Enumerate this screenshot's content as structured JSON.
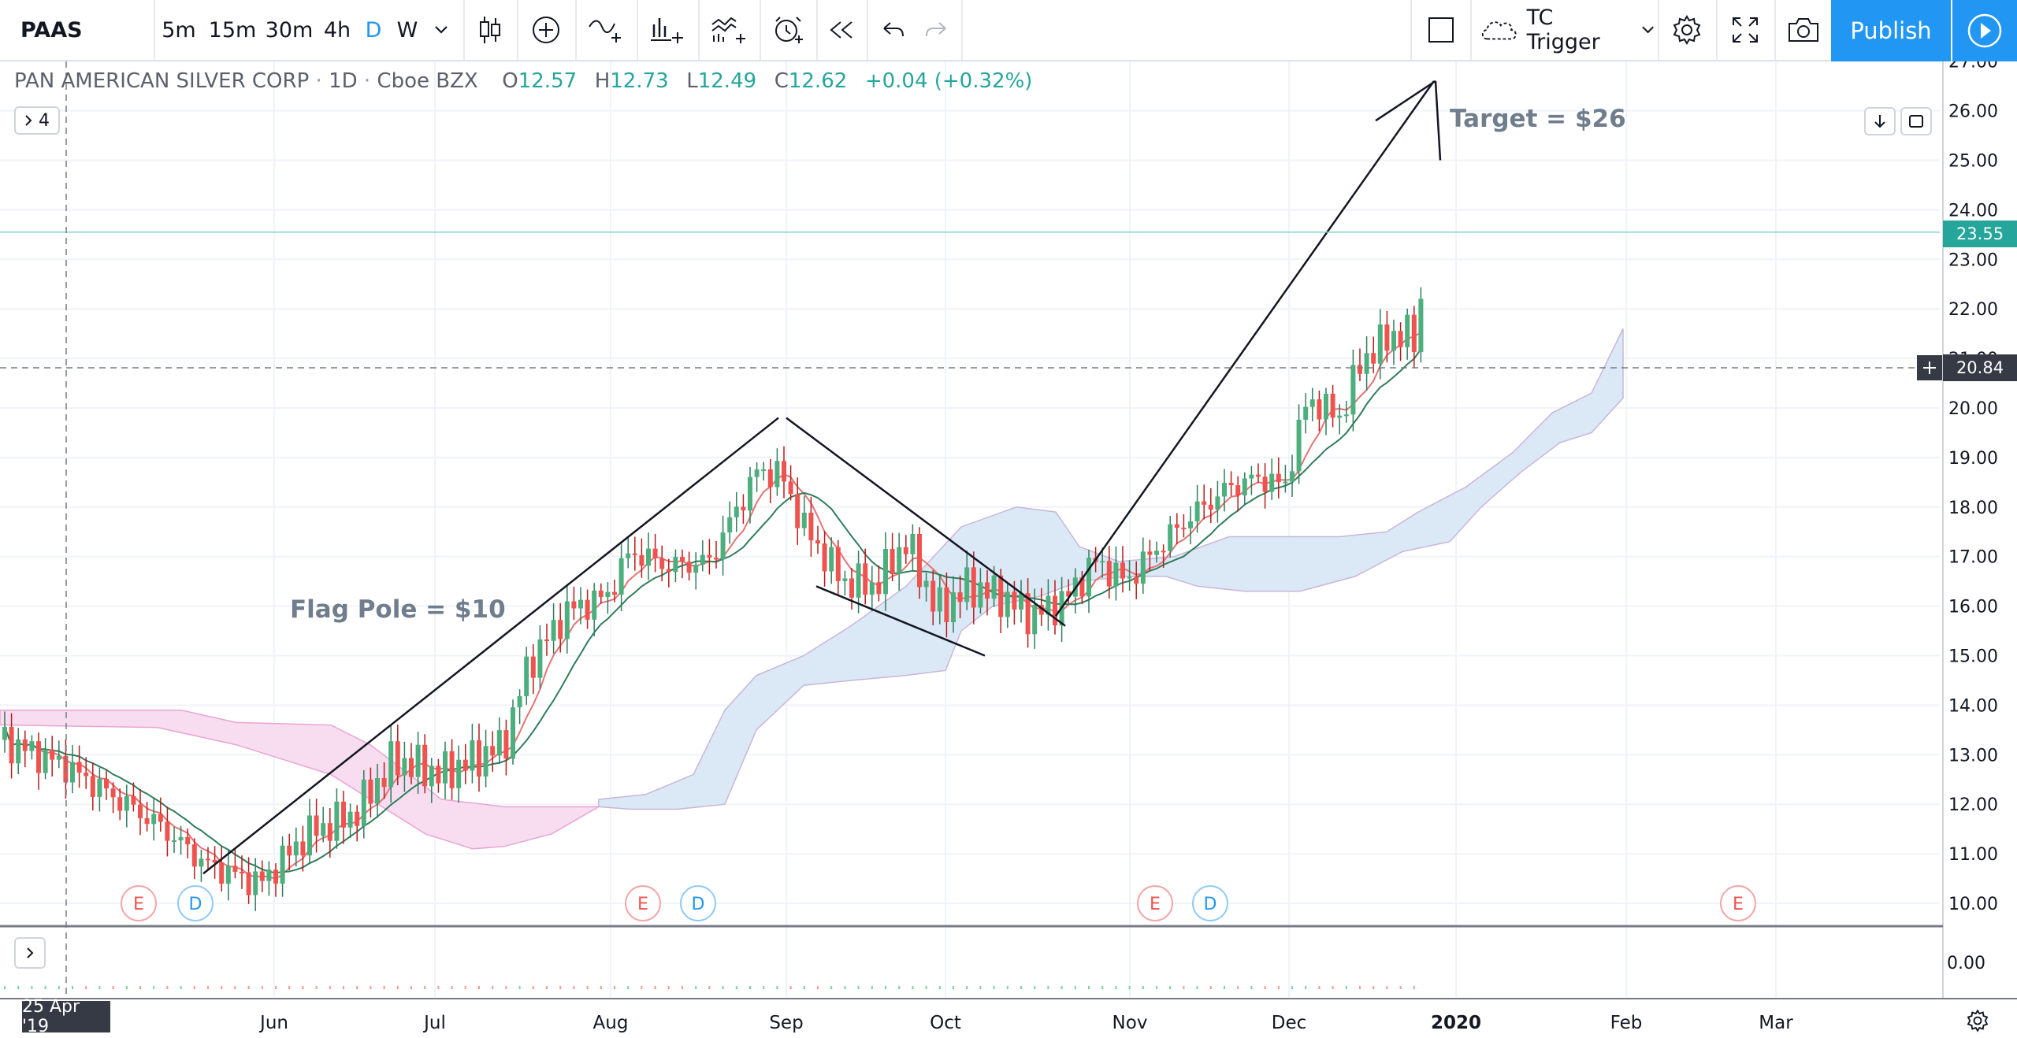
{
  "toolbar": {
    "symbol": "PAAS",
    "intervals": [
      "5m",
      "15m",
      "30m",
      "4h",
      "D",
      "W"
    ],
    "active_interval": "D",
    "indicator_template": "TC Trigger",
    "publish_label": "Publish"
  },
  "legend": {
    "name": "PAN AMERICAN SILVER CORP",
    "timeframe": "1D",
    "exchange": "Cboe BZX",
    "o_label": "O",
    "o": "12.57",
    "h_label": "H",
    "h": "12.73",
    "l_label": "L",
    "l": "12.49",
    "c_label": "C",
    "c": "12.62",
    "change": "+0.04 (+0.32%)",
    "indicator_count": "4"
  },
  "annotations": {
    "flag_pole": "Flag Pole = $10",
    "target": "Target = $26"
  },
  "price_labels": {
    "last_price": "23.55",
    "crosshair_price": "20.84",
    "crosshair_date": "25 Apr '19"
  },
  "colors": {
    "up": "#26a69a",
    "down": "#ef5350",
    "up_body": "#4caf7d",
    "cloud_bull": "#dbe8f5",
    "cloud_bear": "#f8dcef",
    "accent": "#2196f3",
    "annotation_text": "#6f7d8c"
  },
  "chart_data": {
    "type": "candlestick",
    "y_axis": {
      "ticks": [
        "10.00",
        "11.00",
        "12.00",
        "13.00",
        "14.00",
        "15.00",
        "16.00",
        "17.00",
        "18.00",
        "19.00",
        "20.00",
        "21.00",
        "22.00",
        "23.00",
        "24.00",
        "25.00",
        "26.00",
        "27.00"
      ],
      "range": [
        9.5,
        27.1
      ]
    },
    "x_axis": {
      "labels": [
        "Jun",
        "Jul",
        "Aug",
        "Sep",
        "Oct",
        "Nov",
        "Dec",
        "2020",
        "Feb",
        "Mar"
      ]
    },
    "volume_pane": {
      "ticks": [
        "0.00"
      ]
    },
    "earnings_markers": [
      "E",
      "E",
      "E",
      "E"
    ],
    "dividend_markers": [
      "D",
      "D",
      "D"
    ]
  }
}
